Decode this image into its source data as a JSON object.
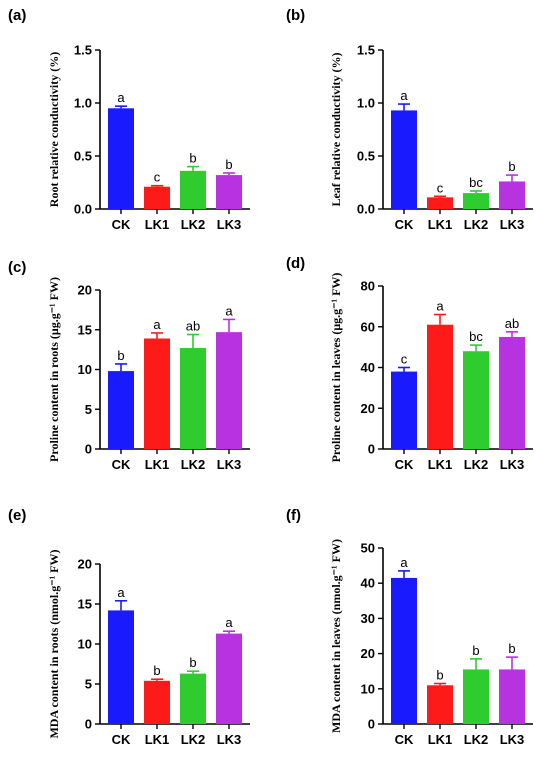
{
  "chart_data": [
    {
      "type": "bar",
      "panel": "(a)",
      "ylabel": "Root relative conductivity  (%)",
      "categories": [
        "CK",
        "LK1",
        "LK2",
        "LK3"
      ],
      "values": [
        0.95,
        0.21,
        0.36,
        0.32
      ],
      "errors": [
        0.02,
        0.01,
        0.04,
        0.02
      ],
      "sig": [
        "a",
        "c",
        "b",
        "b"
      ],
      "colors": [
        "#1a1aff",
        "#ff1a1a",
        "#2ecc2e",
        "#b833e0"
      ],
      "ylim": [
        0,
        1.5
      ],
      "yticks": [
        "0.0",
        "0.5",
        "1.0",
        "1.5"
      ]
    },
    {
      "type": "bar",
      "panel": "(b)",
      "ylabel": "Leaf relative conductivity  (%)",
      "categories": [
        "CK",
        "LK1",
        "LK2",
        "LK3"
      ],
      "values": [
        0.93,
        0.11,
        0.15,
        0.26
      ],
      "errors": [
        0.06,
        0.01,
        0.02,
        0.06
      ],
      "sig": [
        "a",
        "c",
        "bc",
        "b"
      ],
      "colors": [
        "#1a1aff",
        "#ff1a1a",
        "#2ecc2e",
        "#b833e0"
      ],
      "ylim": [
        0,
        1.5
      ],
      "yticks": [
        "0.0",
        "0.5",
        "1.0",
        "1.5"
      ]
    },
    {
      "type": "bar",
      "panel": "(c)",
      "ylabel": "Proline content in roots (μg.g⁻¹ FW)",
      "categories": [
        "CK",
        "LK1",
        "LK2",
        "LK3"
      ],
      "values": [
        9.8,
        13.9,
        12.7,
        14.7
      ],
      "errors": [
        0.9,
        0.7,
        1.7,
        1.6
      ],
      "sig": [
        "b",
        "a",
        "ab",
        "a"
      ],
      "colors": [
        "#1a1aff",
        "#ff1a1a",
        "#2ecc2e",
        "#b833e0"
      ],
      "ylim": [
        0,
        20
      ],
      "yticks": [
        "0",
        "5",
        "10",
        "15",
        "20"
      ]
    },
    {
      "type": "bar",
      "panel": "(d)",
      "ylabel": "Proline content in leaves (μg.g⁻¹ FW)",
      "categories": [
        "CK",
        "LK1",
        "LK2",
        "LK3"
      ],
      "values": [
        38,
        61,
        48,
        55
      ],
      "errors": [
        2,
        5,
        3,
        2.5
      ],
      "sig": [
        "c",
        "a",
        "bc",
        "ab"
      ],
      "colors": [
        "#1a1aff",
        "#ff1a1a",
        "#2ecc2e",
        "#b833e0"
      ],
      "ylim": [
        0,
        80
      ],
      "yticks": [
        "0",
        "20",
        "40",
        "60",
        "80"
      ]
    },
    {
      "type": "bar",
      "panel": "(e)",
      "ylabel": "MDA content in roots (nmol.g⁻¹ FW)",
      "categories": [
        "CK",
        "LK1",
        "LK2",
        "LK3"
      ],
      "values": [
        14.2,
        5.4,
        6.3,
        11.3
      ],
      "errors": [
        1.2,
        0.2,
        0.3,
        0.3
      ],
      "sig": [
        "a",
        "b",
        "b",
        "a"
      ],
      "colors": [
        "#1a1aff",
        "#ff1a1a",
        "#2ecc2e",
        "#b833e0"
      ],
      "ylim": [
        0,
        20
      ],
      "yticks": [
        "0",
        "5",
        "10",
        "15",
        "20"
      ]
    },
    {
      "type": "bar",
      "panel": "(f)",
      "ylabel": "MDA content in leaves (nmol.g⁻¹ FW)",
      "categories": [
        "CK",
        "LK1",
        "LK2",
        "LK3"
      ],
      "values": [
        41.5,
        11,
        15.5,
        15.5
      ],
      "errors": [
        2,
        0.5,
        3,
        3.5
      ],
      "sig": [
        "a",
        "b",
        "b",
        "b"
      ],
      "colors": [
        "#1a1aff",
        "#ff1a1a",
        "#2ecc2e",
        "#b833e0"
      ],
      "ylim": [
        0,
        50
      ],
      "yticks": [
        "0",
        "10",
        "20",
        "30",
        "40",
        "50"
      ]
    }
  ]
}
